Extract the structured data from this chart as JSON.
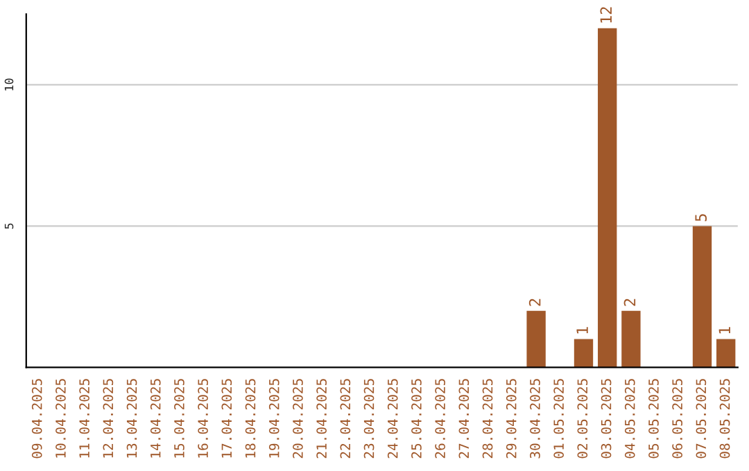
{
  "chart_data": {
    "type": "bar",
    "categories": [
      "09.04.2025",
      "10.04.2025",
      "11.04.2025",
      "12.04.2025",
      "13.04.2025",
      "14.04.2025",
      "15.04.2025",
      "16.04.2025",
      "17.04.2025",
      "18.04.2025",
      "19.04.2025",
      "20.04.2025",
      "21.04.2025",
      "22.04.2025",
      "23.04.2025",
      "24.04.2025",
      "25.04.2025",
      "26.04.2025",
      "27.04.2025",
      "28.04.2025",
      "29.04.2025",
      "30.04.2025",
      "01.05.2025",
      "02.05.2025",
      "03.05.2025",
      "04.05.2025",
      "05.05.2025",
      "06.05.2025",
      "07.05.2025",
      "08.05.2025"
    ],
    "values": [
      0,
      0,
      0,
      0,
      0,
      0,
      0,
      0,
      0,
      0,
      0,
      0,
      0,
      0,
      0,
      0,
      0,
      0,
      0,
      0,
      0,
      2,
      0,
      1,
      12,
      2,
      0,
      0,
      5,
      1
    ],
    "value_labels": [
      null,
      null,
      null,
      null,
      null,
      null,
      null,
      null,
      null,
      null,
      null,
      null,
      null,
      null,
      null,
      null,
      null,
      null,
      null,
      null,
      null,
      "2",
      null,
      "1",
      "12",
      "2",
      null,
      null,
      "5",
      "1"
    ],
    "color": "#a0582a",
    "ylim": [
      0,
      12.5
    ],
    "yticks": [
      5,
      10
    ],
    "grid": "y"
  }
}
